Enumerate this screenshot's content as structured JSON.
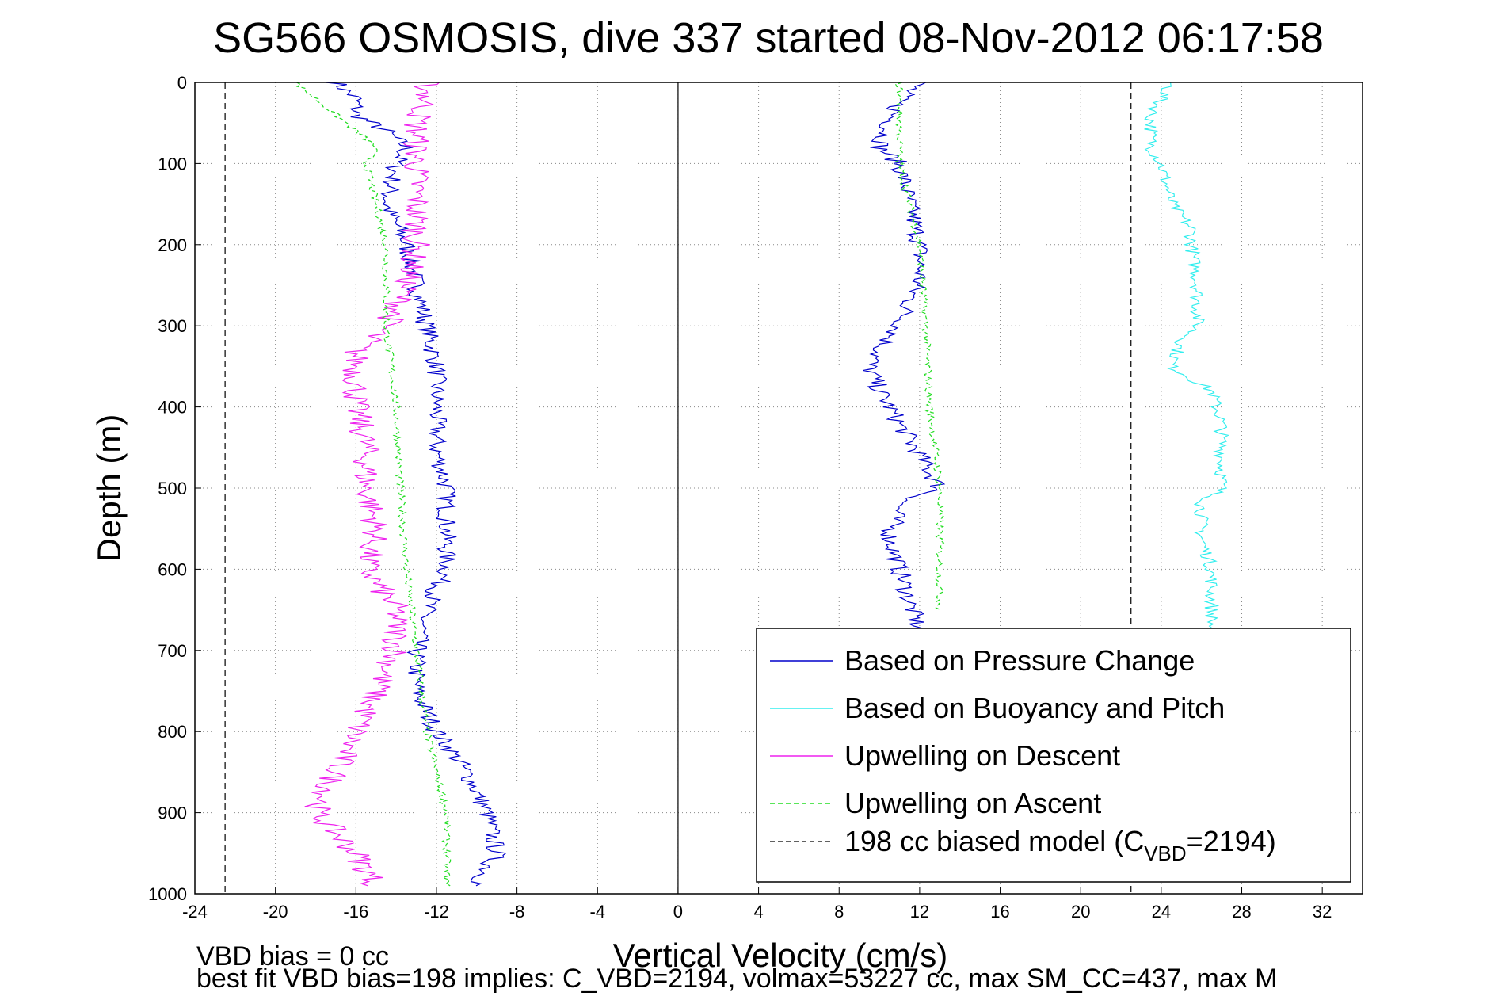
{
  "chart_data": {
    "type": "line",
    "title": "SG566 OSMOSIS, dive 337 started 08-Nov-2012 06:17:58",
    "xlabel": "Vertical Velocity (cm/s)",
    "ylabel": "Depth (m)",
    "xlim": [
      -24,
      34
    ],
    "ylim": [
      0,
      1000
    ],
    "y_reversed": true,
    "grid": true,
    "x_ticks": [
      -24,
      -20,
      -16,
      -12,
      -8,
      -4,
      0,
      4,
      8,
      12,
      16,
      20,
      24,
      28,
      32
    ],
    "y_ticks": [
      0,
      100,
      200,
      300,
      400,
      500,
      600,
      700,
      800,
      900,
      1000
    ],
    "legend_position": "bottom-right",
    "legend": [
      {
        "label": "Based on Pressure Change",
        "color": "#0000cc",
        "dash": "solid"
      },
      {
        "label": "Based on Buoyancy and Pitch",
        "color": "#33eeee",
        "dash": "solid"
      },
      {
        "label": "Upwelling on Descent",
        "color": "#ee22ee",
        "dash": "solid"
      },
      {
        "label": "Upwelling on Ascent",
        "color": "#22dd22",
        "dash": "dashed"
      },
      {
        "label_main": "198 cc biased model (C",
        "label_sub": "VBD",
        "label_tail": "=2194)",
        "color": "#000000",
        "dash": "dashed"
      }
    ],
    "series": [
      {
        "name": "Based on Pressure Change",
        "color": "#0000cc",
        "noise": 0.5,
        "segments": [
          {
            "depth": [
              0,
              20,
              40,
              60,
              80,
              100,
              150,
              200,
              250,
              300,
              350,
              400,
              450,
              500,
              550,
              600,
              650,
              700,
              750,
              800,
              850,
              900,
              950,
              990
            ],
            "values": [
              -17,
              -16,
              -16,
              -14.5,
              -13.5,
              -14,
              -14.5,
              -13.5,
              -13,
              -12.5,
              -12,
              -12,
              -12,
              -11.5,
              -11.5,
              -11.5,
              -12.5,
              -13,
              -13,
              -12,
              -10.5,
              -9.5,
              -9,
              -10
            ]
          },
          {
            "depth": [
              0,
              20,
              50,
              80,
              100,
              150,
              200,
              240,
              270,
              300,
              330,
              350,
              380,
              420,
              460,
              500,
              520,
              560,
              600,
              640,
              680
            ],
            "values": [
              12,
              11,
              10.5,
              10,
              11,
              11.5,
              12,
              12,
              11.5,
              11,
              10,
              9.5,
              10,
              11,
              12,
              13,
              11,
              10.5,
              11,
              11.5,
              12
            ]
          }
        ]
      },
      {
        "name": "Based on Buoyancy and Pitch",
        "color": "#33eeee",
        "noise": 0.35,
        "segments": [
          {
            "depth": [
              0,
              20,
              40,
              80,
              100,
              150,
              180,
              200,
              250,
              300,
              320,
              350,
              380,
              420,
              460,
              500,
              520,
              560,
              600,
              640,
              680
            ],
            "values": [
              24.5,
              24,
              23.5,
              23.5,
              24,
              24.5,
              25.5,
              25.5,
              25.8,
              25.8,
              25,
              24.5,
              26.5,
              27,
              27,
              27,
              26,
              26,
              26.5,
              26.5,
              26.5
            ]
          }
        ]
      },
      {
        "name": "Upwelling on Descent",
        "color": "#ee22ee",
        "noise": 0.7,
        "segments": [
          {
            "depth": [
              0,
              20,
              50,
              80,
              100,
              150,
              200,
              250,
              280,
              300,
              330,
              350,
              400,
              450,
              500,
              550,
              600,
              650,
              700,
              750,
              800,
              850,
              900,
              950,
              990
            ],
            "values": [
              -12.5,
              -12.5,
              -13,
              -13,
              -13,
              -13,
              -13,
              -13.5,
              -14,
              -14.5,
              -16,
              -16,
              -16,
              -15.5,
              -15.5,
              -15,
              -15.5,
              -14,
              -14,
              -15,
              -16,
              -17,
              -18,
              -16,
              -15
            ]
          }
        ]
      },
      {
        "name": "Upwelling on Ascent",
        "color": "#22dd22",
        "dash": true,
        "noise": 0.2,
        "segments": [
          {
            "depth": [
              0,
              20,
              40,
              60,
              80,
              100,
              150,
              200,
              250,
              300,
              400,
              500,
              600,
              700,
              800,
              850,
              900,
              950,
              990
            ],
            "values": [
              -19,
              -18,
              -17,
              -16,
              -15,
              -15.5,
              -15,
              -14.5,
              -14.5,
              -14.5,
              -14,
              -13.8,
              -13.5,
              -13,
              -12.5,
              -12,
              -11.5,
              -11.5,
              -11.5
            ]
          },
          {
            "depth": [
              0,
              50,
              100,
              150,
              200,
              300,
              400,
              500,
              600,
              650
            ],
            "values": [
              11,
              11,
              11,
              11.5,
              12,
              12.3,
              12.5,
              13,
              13,
              13
            ]
          }
        ]
      }
    ],
    "reference_lines": [
      {
        "x": -22.5,
        "color": "#000000",
        "dash": "dashed"
      },
      {
        "x": 22.5,
        "color": "#000000",
        "dash": "dashed"
      },
      {
        "x": 0,
        "color": "#000000",
        "dash": "solid"
      }
    ]
  },
  "footer": {
    "line1": "VBD bias = 0 cc",
    "line2": "best fit VBD bias=198 implies: C_VBD=2194, volmax=53227 cc, max SM_CC=437, max M"
  }
}
